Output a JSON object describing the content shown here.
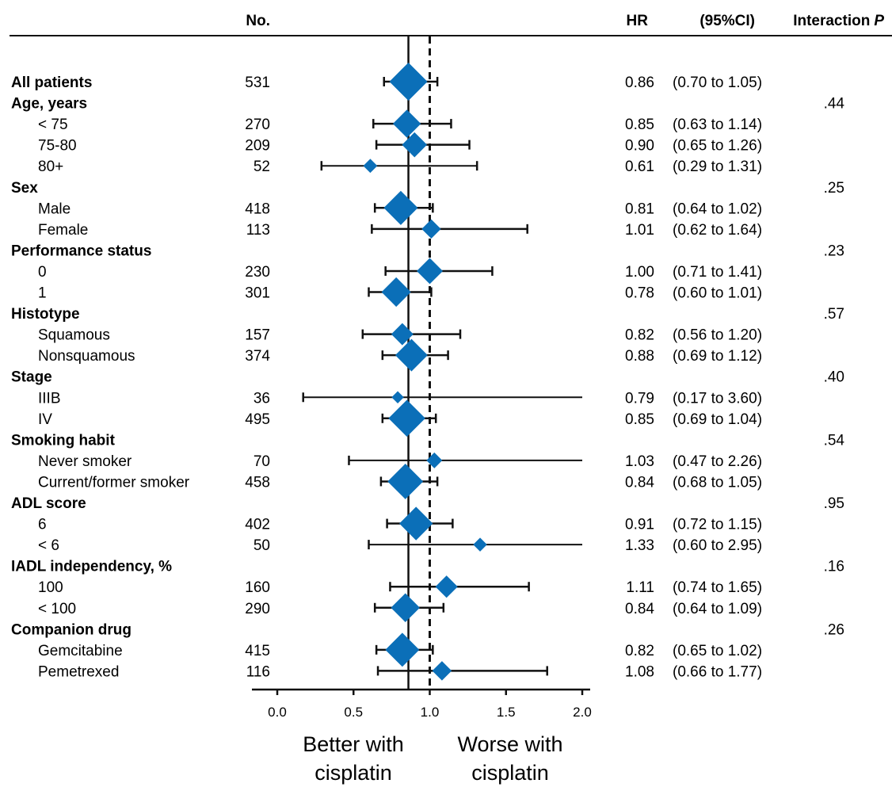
{
  "headers": {
    "no": "No.",
    "hr": "HR",
    "ci": "(95%CI)",
    "interaction": "Interaction",
    "interaction_p": "P"
  },
  "chart_data": {
    "type": "forest",
    "title": "",
    "xlim": [
      0.0,
      2.0
    ],
    "x_ticks": [
      "0.0",
      "0.5",
      "1.0",
      "1.5",
      "2.0"
    ],
    "reference_lines": [
      {
        "value": 0.86,
        "style": "solid"
      },
      {
        "value": 1.0,
        "style": "dashed"
      }
    ],
    "marker_color": "#0b6fb8",
    "direction_labels": {
      "left": [
        "Better with",
        "cisplatin"
      ],
      "right": [
        "Worse with",
        "cisplatin"
      ]
    },
    "rows": [
      {
        "kind": "overall",
        "label": "All patients",
        "n": "531",
        "hr": 0.86,
        "lo": 0.7,
        "hi": 1.05,
        "hr_text": "0.86",
        "ci_text": "(0.70 to 1.05)"
      },
      {
        "kind": "group",
        "label": "Age, years",
        "p": ".44"
      },
      {
        "kind": "sub",
        "label": "< 75",
        "n": "270",
        "hr": 0.85,
        "lo": 0.63,
        "hi": 1.14,
        "hr_text": "0.85",
        "ci_text": "(0.63 to 1.14)"
      },
      {
        "kind": "sub",
        "label": "75-80",
        "n": "209",
        "hr": 0.9,
        "lo": 0.65,
        "hi": 1.26,
        "hr_text": "0.90",
        "ci_text": "(0.65 to 1.26)"
      },
      {
        "kind": "sub",
        "label": "80+",
        "n": "52",
        "hr": 0.61,
        "lo": 0.29,
        "hi": 1.31,
        "hr_text": "0.61",
        "ci_text": "(0.29 to 1.31)"
      },
      {
        "kind": "group",
        "label": "Sex",
        "p": ".25"
      },
      {
        "kind": "sub",
        "label": "Male",
        "n": "418",
        "hr": 0.81,
        "lo": 0.64,
        "hi": 1.02,
        "hr_text": "0.81",
        "ci_text": "(0.64 to 1.02)"
      },
      {
        "kind": "sub",
        "label": "Female",
        "n": "113",
        "hr": 1.01,
        "lo": 0.62,
        "hi": 1.64,
        "hr_text": "1.01",
        "ci_text": "(0.62 to 1.64)"
      },
      {
        "kind": "group",
        "label": "Performance status",
        "p": ".23"
      },
      {
        "kind": "sub",
        "label": "0",
        "n": "230",
        "hr": 1.0,
        "lo": 0.71,
        "hi": 1.41,
        "hr_text": "1.00",
        "ci_text": "(0.71 to 1.41)"
      },
      {
        "kind": "sub",
        "label": "1",
        "n": "301",
        "hr": 0.78,
        "lo": 0.6,
        "hi": 1.01,
        "hr_text": "0.78",
        "ci_text": "(0.60 to 1.01)"
      },
      {
        "kind": "group",
        "label": "Histotype",
        "p": ".57"
      },
      {
        "kind": "sub",
        "label": "Squamous",
        "n": "157",
        "hr": 0.82,
        "lo": 0.56,
        "hi": 1.2,
        "hr_text": "0.82",
        "ci_text": "(0.56 to 1.20)"
      },
      {
        "kind": "sub",
        "label": "Nonsquamous",
        "n": "374",
        "hr": 0.88,
        "lo": 0.69,
        "hi": 1.12,
        "hr_text": "0.88",
        "ci_text": "(0.69 to 1.12)"
      },
      {
        "kind": "group",
        "label": "Stage",
        "p": ".40"
      },
      {
        "kind": "sub",
        "label": "IIIB",
        "n": "36",
        "hr": 0.79,
        "lo": 0.17,
        "hi": 3.6,
        "hr_text": "0.79",
        "ci_text": "(0.17 to 3.60)"
      },
      {
        "kind": "sub",
        "label": "IV",
        "n": "495",
        "hr": 0.85,
        "lo": 0.69,
        "hi": 1.04,
        "hr_text": "0.85",
        "ci_text": "(0.69 to 1.04)"
      },
      {
        "kind": "group",
        "label": "Smoking habit",
        "p": ".54"
      },
      {
        "kind": "sub",
        "label": "Never smoker",
        "n": "70",
        "hr": 1.03,
        "lo": 0.47,
        "hi": 2.26,
        "hr_text": "1.03",
        "ci_text": "(0.47 to 2.26)"
      },
      {
        "kind": "sub",
        "label": "Current/former smoker",
        "n": "458",
        "hr": 0.84,
        "lo": 0.68,
        "hi": 1.05,
        "hr_text": "0.84",
        "ci_text": "(0.68 to 1.05)"
      },
      {
        "kind": "group",
        "label": "ADL score",
        "p": ".95"
      },
      {
        "kind": "sub",
        "label": "6",
        "n": "402",
        "hr": 0.91,
        "lo": 0.72,
        "hi": 1.15,
        "hr_text": "0.91",
        "ci_text": "(0.72 to 1.15)"
      },
      {
        "kind": "sub",
        "label": "< 6",
        "n": "50",
        "hr": 1.33,
        "lo": 0.6,
        "hi": 2.95,
        "hr_text": "1.33",
        "ci_text": "(0.60 to 2.95)"
      },
      {
        "kind": "group",
        "label": "IADL independency, %",
        "p": ".16"
      },
      {
        "kind": "sub",
        "label": "100",
        "n": "160",
        "hr": 1.11,
        "lo": 0.74,
        "hi": 1.65,
        "hr_text": "1.11",
        "ci_text": "(0.74 to 1.65)"
      },
      {
        "kind": "sub",
        "label": "< 100",
        "n": "290",
        "hr": 0.84,
        "lo": 0.64,
        "hi": 1.09,
        "hr_text": "0.84",
        "ci_text": "(0.64 to 1.09)"
      },
      {
        "kind": "group",
        "label": "Companion drug",
        "p": ".26"
      },
      {
        "kind": "sub",
        "label": "Gemcitabine",
        "n": "415",
        "hr": 0.82,
        "lo": 0.65,
        "hi": 1.02,
        "hr_text": "0.82",
        "ci_text": "(0.65 to 1.02)"
      },
      {
        "kind": "sub",
        "label": "Pemetrexed",
        "n": "116",
        "hr": 1.08,
        "lo": 0.66,
        "hi": 1.77,
        "hr_text": "1.08",
        "ci_text": "(0.66 to 1.77)"
      }
    ]
  }
}
